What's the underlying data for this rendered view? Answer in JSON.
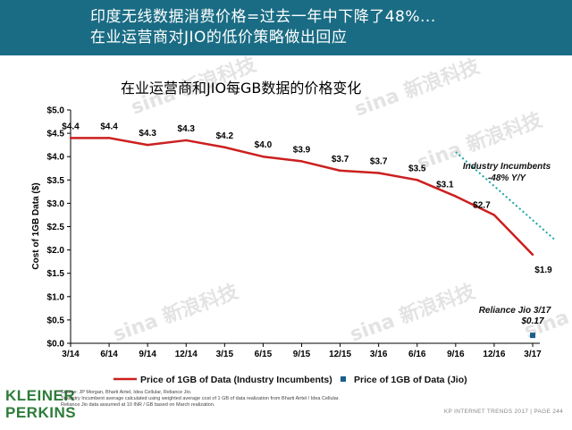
{
  "header": {
    "line1": "印度无线数据消费价格=过去一年中下降了48%...",
    "line2": "在业运营商对JIO的低价策略做出回应",
    "bg_color": "#1a6c84"
  },
  "watermark": "sina 新浪科技",
  "chart_data": {
    "type": "line",
    "title": "在业运营商和JIO每GB数据的价格变化",
    "ylabel": "Cost of 1GB Data ($)",
    "xlabel": "",
    "categories": [
      "3/14",
      "6/14",
      "9/14",
      "12/14",
      "3/15",
      "6/15",
      "9/15",
      "12/15",
      "3/16",
      "6/16",
      "9/16",
      "12/16",
      "3/17"
    ],
    "ylim": [
      0,
      5
    ],
    "yticks": [
      0,
      0.5,
      1.0,
      1.5,
      2.0,
      2.5,
      3.0,
      3.5,
      4.0,
      4.5,
      5.0
    ],
    "ytick_labels": [
      "$0.0",
      "$0.5",
      "$1.0",
      "$1.5",
      "$2.0",
      "$2.5",
      "$3.0",
      "$3.5",
      "$4.0",
      "$4.5",
      "$5.0"
    ],
    "grid": false,
    "series": [
      {
        "name": "Price of 1GB of Data (Industry Incumbents)",
        "color": "#cc1f1f",
        "values": [
          4.4,
          4.4,
          4.25,
          4.35,
          4.2,
          4.0,
          3.9,
          3.7,
          3.65,
          3.5,
          3.15,
          2.75,
          1.9
        ],
        "data_labels": [
          "$4.4",
          "$4.4",
          "$4.3",
          "$4.3",
          "$4.2",
          "$4.0",
          "$3.9",
          "$3.7",
          "$3.7",
          "$3.5",
          "$3.1",
          "$2.7",
          "$1.9"
        ]
      },
      {
        "name": "Price of 1GB of Data (Jio)",
        "color": "#1a5e8a",
        "points": [
          {
            "x": "3/17",
            "y": 0.17
          }
        ],
        "data_labels": [
          "$0.17"
        ]
      }
    ],
    "trendline": {
      "color": "#1aa3a8",
      "from": {
        "x": "9/16",
        "y": 4.1
      },
      "to": {
        "x": "3/17",
        "y": 2.2
      }
    },
    "annotations": [
      {
        "text_line1": "Industry Incumbents",
        "text_line2": "-48% Y/Y"
      },
      {
        "text_line1": "Reliance Jio 3/17"
      }
    ],
    "legend_placement": "bottom"
  },
  "footer": {
    "logo_line1": "KLEINER",
    "logo_line2": "PERKINS",
    "source": "Source: JP Morgan, Bharti Airtel, Idea Cellular, Reliance Jio.",
    "note1": "*Industry Incumbent average calculated using weighted average cost of 1 GB of data realization from Bharti Airtel / Idea Cellular.",
    "note2": "Reliance Jio data assumed at 10 INR / GB based on March realization.",
    "right_text": "KP INTERNET TRENDS 2017  |  PAGE 244"
  }
}
